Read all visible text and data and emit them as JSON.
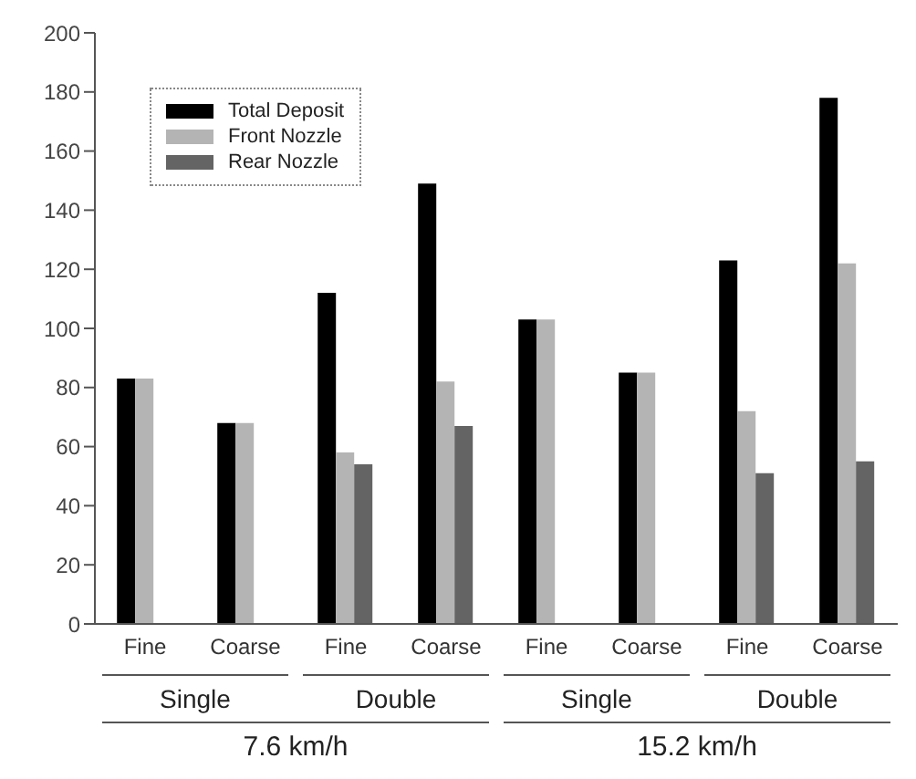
{
  "chart_data": {
    "type": "bar",
    "categories": [
      "Fine",
      "Coarse",
      "Fine",
      "Coarse",
      "Fine",
      "Coarse",
      "Fine",
      "Coarse"
    ],
    "series": [
      {
        "name": "Total Deposit",
        "color": "#000000",
        "values": [
          83,
          68,
          112,
          149,
          103,
          85,
          123,
          178
        ]
      },
      {
        "name": "Front Nozzle",
        "color": "#b4b4b4",
        "values": [
          83,
          68,
          58,
          82,
          103,
          85,
          72,
          122
        ]
      },
      {
        "name": "Rear Nozzle",
        "color": "#646464",
        "values": [
          null,
          null,
          54,
          67,
          null,
          null,
          51,
          55
        ]
      }
    ],
    "ylim": [
      0,
      200
    ],
    "yticks": [
      0,
      20,
      40,
      60,
      80,
      100,
      120,
      140,
      160,
      180,
      200
    ],
    "legend": "top left",
    "grid": false,
    "annotations": [
      "Single",
      "Double",
      "Single",
      "Double",
      "7.6 km/h",
      "15.2 km/h"
    ]
  }
}
